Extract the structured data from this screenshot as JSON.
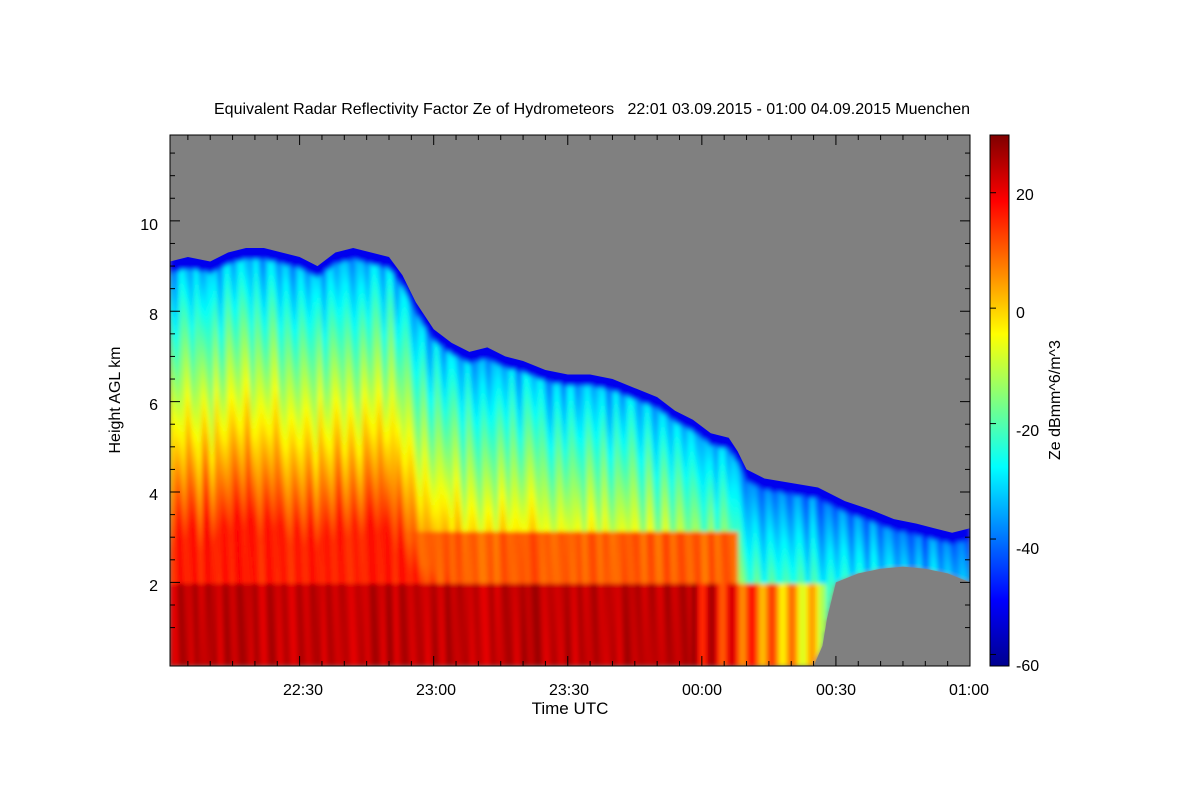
{
  "chart_data": {
    "type": "heatmap",
    "title": "Equivalent Radar Reflectivity Factor Ze of Hydrometeors   22:01 03.09.2015 - 01:00 04.09.2015 Muenchen",
    "xlabel": "Time UTC",
    "ylabel": "Height AGL km",
    "colorbar_label": "Ze dBmm^6/m^3",
    "x_range": [
      "22:01",
      "01:00"
    ],
    "x_range_minutes_after_22": [
      1,
      180
    ],
    "y_range_km": [
      0.15,
      11.9
    ],
    "x_ticks": [
      {
        "label": "22:30",
        "minutes": 30
      },
      {
        "label": "23:00",
        "minutes": 60
      },
      {
        "label": "23:30",
        "minutes": 90
      },
      {
        "label": "00:00",
        "minutes": 120
      },
      {
        "label": "00:30",
        "minutes": 150
      },
      {
        "label": "01:00",
        "minutes": 180
      }
    ],
    "y_ticks": [
      {
        "label": "2",
        "value": 2
      },
      {
        "label": "4",
        "value": 4
      },
      {
        "label": "6",
        "value": 6
      },
      {
        "label": "8",
        "value": 8
      },
      {
        "label": "10",
        "value": 10
      }
    ],
    "colorbar_range": [
      -62,
      30
    ],
    "colorbar_ticks": [
      {
        "label": "20",
        "value": 20
      },
      {
        "label": "0",
        "value": 0
      },
      {
        "label": "-20",
        "value": -20
      },
      {
        "label": "-40",
        "value": -40
      },
      {
        "label": "-60",
        "value": -60
      }
    ],
    "no_echo_color": "#808080",
    "melting_layer_km": 1.95,
    "echo_top_km": [
      {
        "t": 1,
        "h": 9.1
      },
      {
        "t": 5,
        "h": 9.2
      },
      {
        "t": 10,
        "h": 9.1
      },
      {
        "t": 14,
        "h": 9.3
      },
      {
        "t": 18,
        "h": 9.4
      },
      {
        "t": 22,
        "h": 9.4
      },
      {
        "t": 26,
        "h": 9.3
      },
      {
        "t": 30,
        "h": 9.2
      },
      {
        "t": 34,
        "h": 9.0
      },
      {
        "t": 38,
        "h": 9.3
      },
      {
        "t": 42,
        "h": 9.4
      },
      {
        "t": 46,
        "h": 9.3
      },
      {
        "t": 50,
        "h": 9.2
      },
      {
        "t": 53,
        "h": 8.8
      },
      {
        "t": 56,
        "h": 8.2
      },
      {
        "t": 60,
        "h": 7.6
      },
      {
        "t": 64,
        "h": 7.3
      },
      {
        "t": 68,
        "h": 7.1
      },
      {
        "t": 72,
        "h": 7.2
      },
      {
        "t": 76,
        "h": 7.0
      },
      {
        "t": 80,
        "h": 6.9
      },
      {
        "t": 85,
        "h": 6.7
      },
      {
        "t": 90,
        "h": 6.6
      },
      {
        "t": 95,
        "h": 6.6
      },
      {
        "t": 100,
        "h": 6.5
      },
      {
        "t": 105,
        "h": 6.3
      },
      {
        "t": 110,
        "h": 6.1
      },
      {
        "t": 114,
        "h": 5.8
      },
      {
        "t": 118,
        "h": 5.6
      },
      {
        "t": 122,
        "h": 5.3
      },
      {
        "t": 126,
        "h": 5.2
      },
      {
        "t": 128,
        "h": 4.9
      },
      {
        "t": 130,
        "h": 4.5
      },
      {
        "t": 134,
        "h": 4.3
      },
      {
        "t": 140,
        "h": 4.2
      },
      {
        "t": 146,
        "h": 4.1
      },
      {
        "t": 152,
        "h": 3.8
      },
      {
        "t": 158,
        "h": 3.6
      },
      {
        "t": 163,
        "h": 3.4
      },
      {
        "t": 168,
        "h": 3.3
      },
      {
        "t": 172,
        "h": 3.2
      },
      {
        "t": 176,
        "h": 3.1
      },
      {
        "t": 180,
        "h": 3.2
      }
    ],
    "echo_base_km": [
      {
        "t": 1,
        "h": 0.15
      },
      {
        "t": 145,
        "h": 0.15
      },
      {
        "t": 147,
        "h": 0.6
      },
      {
        "t": 148,
        "h": 1.2
      },
      {
        "t": 150,
        "h": 2.0
      },
      {
        "t": 155,
        "h": 2.2
      },
      {
        "t": 160,
        "h": 2.3
      },
      {
        "t": 165,
        "h": 2.35
      },
      {
        "t": 170,
        "h": 2.3
      },
      {
        "t": 175,
        "h": 2.2
      },
      {
        "t": 180,
        "h": 2.0
      }
    ]
  }
}
